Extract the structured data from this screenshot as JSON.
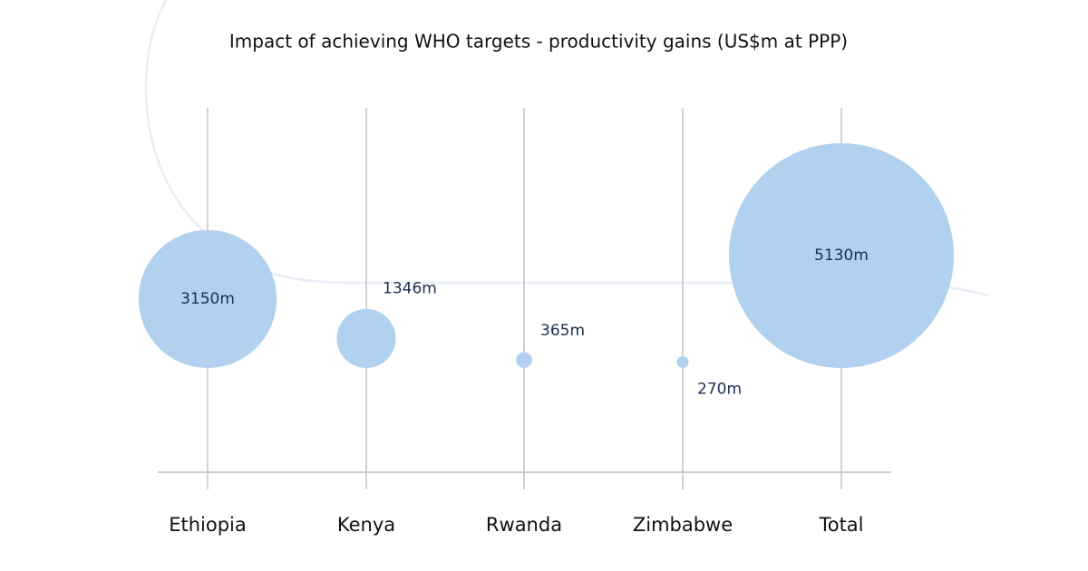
{
  "chart_data": {
    "type": "bubble",
    "title": "Impact of achieving WHO targets - productivity gains (US$m at PPP)",
    "categories": [
      "Ethiopia",
      "Kenya",
      "Rwanda",
      "Zimbabwe",
      "Total"
    ],
    "values": [
      3150,
      1346,
      365,
      270,
      5130
    ],
    "value_labels": [
      "3150m",
      "1346m",
      "365m",
      "270m",
      "5130m"
    ],
    "color": "#b1d1ef"
  }
}
